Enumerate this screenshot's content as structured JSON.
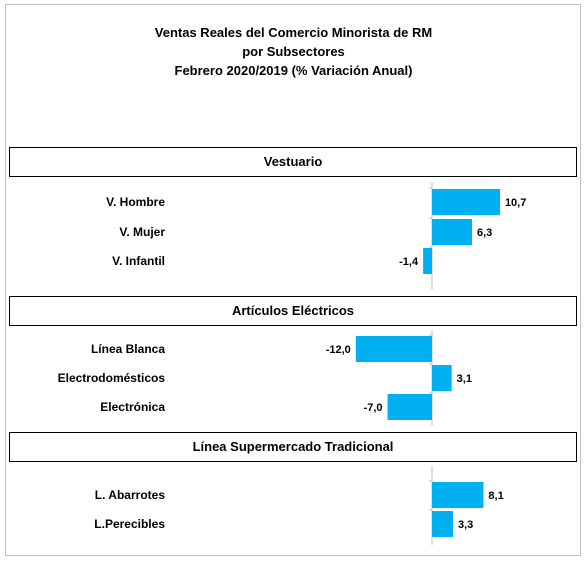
{
  "chart_data": {
    "type": "bar",
    "orientation": "horizontal",
    "title": [
      "Ventas Reales del Comercio Minorista de RM",
      "por Subsectores",
      "Febrero 2020/2019 (% Variación Anual)"
    ],
    "bar_color": "#00b0f0",
    "grid": false,
    "legend": "none",
    "xlim": [
      -12.0,
      10.7
    ],
    "sections": [
      {
        "name": "Vestuario",
        "categories": [
          "V. Hombre",
          "V. Mujer",
          "V. Infantil"
        ],
        "values": [
          10.7,
          6.3,
          -1.4
        ],
        "labels": [
          "10,7",
          "6,3",
          "-1,4"
        ]
      },
      {
        "name": "Artículos Eléctricos",
        "categories": [
          "Línea Blanca",
          "Electrodomésticos",
          "Electrónica"
        ],
        "values": [
          -12.0,
          3.1,
          -7.0
        ],
        "labels": [
          "-12,0",
          "3,1",
          "-7,0"
        ]
      },
      {
        "name": "Línea Supermercado Tradicional",
        "categories": [
          "L. Abarrotes",
          "L.Perecibles"
        ],
        "values": [
          8.1,
          3.3
        ],
        "labels": [
          "8,1",
          "3,3"
        ]
      }
    ]
  }
}
